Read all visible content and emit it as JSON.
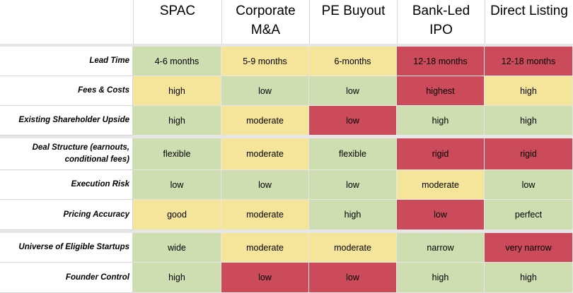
{
  "columns": [
    "SPAC",
    "Corporate M&A",
    "PE Buyout",
    "Bank-Led IPO",
    "Direct Listing"
  ],
  "rows": [
    {
      "label": "Lead Time",
      "cells": [
        {
          "text": "4-6 months",
          "rating": "green"
        },
        {
          "text": "5-9 months",
          "rating": "yellow"
        },
        {
          "text": "6-months",
          "rating": "yellow"
        },
        {
          "text": "12-18 months",
          "rating": "red"
        },
        {
          "text": "12-18 months",
          "rating": "red"
        }
      ]
    },
    {
      "label": "Fees & Costs",
      "cells": [
        {
          "text": "high",
          "rating": "yellow"
        },
        {
          "text": "low",
          "rating": "green"
        },
        {
          "text": "low",
          "rating": "green"
        },
        {
          "text": "highest",
          "rating": "red"
        },
        {
          "text": "high",
          "rating": "yellow"
        }
      ]
    },
    {
      "label": "Existing Shareholder Upside",
      "cells": [
        {
          "text": "high",
          "rating": "green"
        },
        {
          "text": "moderate",
          "rating": "yellow"
        },
        {
          "text": "low",
          "rating": "red"
        },
        {
          "text": "high",
          "rating": "green"
        },
        {
          "text": "high",
          "rating": "green"
        }
      ]
    },
    {
      "label": "Deal Structure (earnouts, conditional fees)",
      "cells": [
        {
          "text": "flexible",
          "rating": "green"
        },
        {
          "text": "moderate",
          "rating": "yellow"
        },
        {
          "text": "flexible",
          "rating": "green"
        },
        {
          "text": "rigid",
          "rating": "red"
        },
        {
          "text": "rigid",
          "rating": "red"
        }
      ]
    },
    {
      "label": "Execution Risk",
      "cells": [
        {
          "text": "low",
          "rating": "green"
        },
        {
          "text": "low",
          "rating": "green"
        },
        {
          "text": "low",
          "rating": "green"
        },
        {
          "text": "moderate",
          "rating": "yellow"
        },
        {
          "text": "low",
          "rating": "green"
        }
      ]
    },
    {
      "label": "Pricing Accuracy",
      "cells": [
        {
          "text": "good",
          "rating": "yellow"
        },
        {
          "text": "moderate",
          "rating": "yellow"
        },
        {
          "text": "high",
          "rating": "green"
        },
        {
          "text": "low",
          "rating": "red"
        },
        {
          "text": "perfect",
          "rating": "green"
        }
      ]
    },
    {
      "label": "Universe of Eligible Startups",
      "cells": [
        {
          "text": "wide",
          "rating": "green"
        },
        {
          "text": "moderate",
          "rating": "yellow"
        },
        {
          "text": "moderate",
          "rating": "yellow"
        },
        {
          "text": "narrow",
          "rating": "green"
        },
        {
          "text": "very narrow",
          "rating": "red"
        }
      ]
    },
    {
      "label": "Founder Control",
      "cells": [
        {
          "text": "high",
          "rating": "green"
        },
        {
          "text": "low",
          "rating": "red"
        },
        {
          "text": "low",
          "rating": "red"
        },
        {
          "text": "high",
          "rating": "green"
        },
        {
          "text": "high",
          "rating": "green"
        }
      ]
    }
  ],
  "colors": {
    "green": "#cfdeb0",
    "yellow": "#f4e59a",
    "red": "#cc4b5b"
  }
}
